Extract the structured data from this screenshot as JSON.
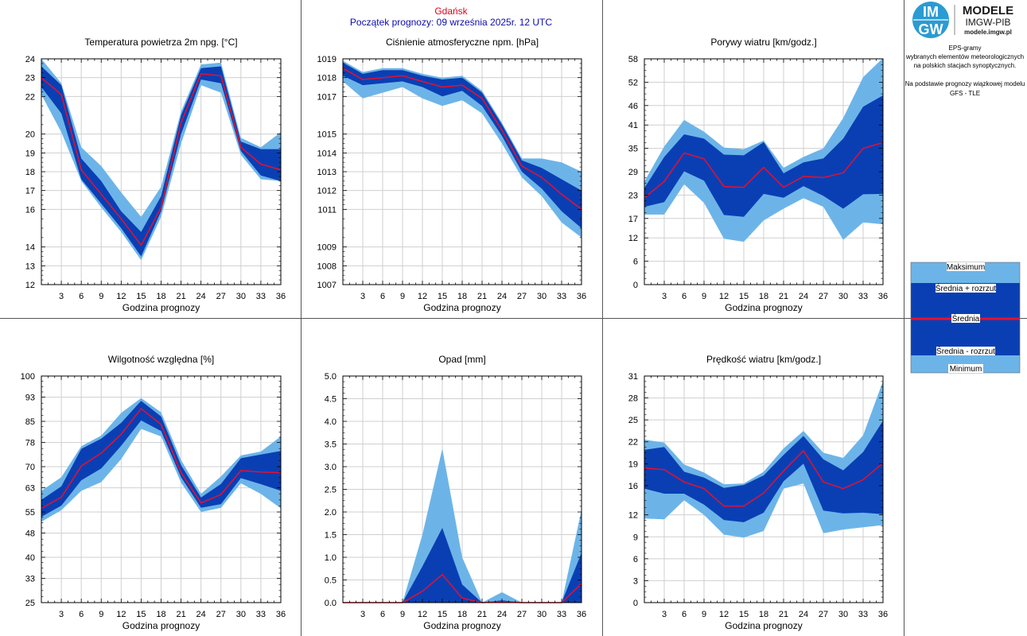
{
  "header": {
    "station": "Gdańsk",
    "forecast_start": "Początek prognozy: 09 września 2025r. 12 UTC"
  },
  "logo": {
    "badge_line1": "IM",
    "badge_line2": "GW",
    "title": "MODELE",
    "subtitle": "IMGW-PIB",
    "url": "modele.imgw.pl"
  },
  "sidebar": {
    "desc_lines": [
      "EPS-gramy",
      "wybranych elementów meteorologicznych",
      "na polskich stacjach  synoptycznych.",
      "",
      "Na podstawie prognozy wiązkowej modelu",
      "GFS - TLE"
    ]
  },
  "legend": {
    "max_label": "Maksimum",
    "upper_label": "Średnia + rozrzut",
    "mean_label": "Średnia",
    "lower_label": "Średnia - rozrzut",
    "min_label": "Minimum",
    "colors": {
      "outer": "#6cb4e8",
      "inner": "#0a3fb4",
      "mean": "#e8102e"
    }
  },
  "chart_data": [
    {
      "id": "temp",
      "type": "area",
      "title": "Temperatura powietrza 2m npg. [°C]",
      "xlabel": "Godzina prognozy",
      "x": [
        0,
        3,
        6,
        9,
        12,
        15,
        18,
        21,
        24,
        27,
        30,
        33,
        36
      ],
      "xticks": [
        3,
        6,
        9,
        12,
        15,
        18,
        21,
        24,
        27,
        30,
        33,
        36
      ],
      "ylim": [
        12,
        24
      ],
      "yticks": [
        12,
        13,
        14,
        16,
        17,
        18,
        19,
        20,
        22,
        23,
        24
      ],
      "ytick_labels": [
        "12",
        "13",
        "14",
        "16",
        "17",
        "18",
        "19",
        "20",
        "22",
        "23",
        "24"
      ],
      "series": [
        {
          "role": "maximum",
          "values": [
            24.0,
            22.7,
            19.3,
            18.3,
            16.9,
            15.6,
            17.2,
            21.2,
            23.7,
            23.8,
            19.8,
            19.3,
            20.1
          ]
        },
        {
          "role": "upper",
          "values": [
            23.6,
            22.6,
            18.7,
            17.5,
            15.9,
            14.8,
            16.7,
            21.0,
            23.5,
            23.6,
            19.6,
            19.2,
            19.2
          ]
        },
        {
          "role": "mean",
          "values": [
            23.0,
            22.1,
            18.1,
            16.8,
            15.5,
            14.1,
            16.1,
            20.6,
            23.2,
            23.1,
            19.3,
            18.4,
            18.1
          ]
        },
        {
          "role": "lower",
          "values": [
            22.5,
            21.1,
            17.6,
            16.3,
            15.0,
            13.5,
            15.9,
            20.0,
            22.9,
            22.7,
            19.1,
            17.8,
            17.5
          ]
        },
        {
          "role": "minimum",
          "values": [
            22.1,
            20.1,
            17.5,
            16.1,
            14.8,
            13.3,
            15.6,
            19.5,
            22.6,
            22.2,
            18.9,
            17.6,
            17.5
          ]
        }
      ]
    },
    {
      "id": "pressure",
      "type": "area",
      "title": "Ciśnienie atmosferyczne npm. [hPa]",
      "xlabel": "Godzina prognozy",
      "x": [
        0,
        3,
        6,
        9,
        12,
        15,
        18,
        21,
        24,
        27,
        30,
        33,
        36
      ],
      "xticks": [
        3,
        6,
        9,
        12,
        15,
        18,
        21,
        24,
        27,
        30,
        33,
        36
      ],
      "ylim": [
        1007,
        1019
      ],
      "yticks": [
        1007,
        1008,
        1009,
        1011,
        1012,
        1013,
        1014,
        1015,
        1017,
        1018,
        1019
      ],
      "ytick_labels": [
        "1007",
        "1008",
        "1009",
        "1011",
        "1012",
        "1013",
        "1014",
        "1015",
        "1017",
        "1018",
        "1019"
      ],
      "series": [
        {
          "role": "maximum",
          "values": [
            1018.9,
            1018.3,
            1018.5,
            1018.5,
            1018.2,
            1018.0,
            1018.1,
            1017.3,
            1015.6,
            1013.7,
            1013.7,
            1013.5,
            1013.0
          ]
        },
        {
          "role": "upper",
          "values": [
            1018.8,
            1018.2,
            1018.4,
            1018.4,
            1018.1,
            1017.9,
            1018.0,
            1017.2,
            1015.5,
            1013.6,
            1013.2,
            1012.6,
            1012.0
          ]
        },
        {
          "role": "mean",
          "values": [
            1018.5,
            1017.9,
            1018.0,
            1018.1,
            1017.8,
            1017.5,
            1017.6,
            1016.9,
            1015.2,
            1013.3,
            1012.7,
            1011.8,
            1011.0
          ]
        },
        {
          "role": "lower",
          "values": [
            1018.1,
            1017.6,
            1017.7,
            1017.8,
            1017.5,
            1017.0,
            1017.3,
            1016.5,
            1014.9,
            1013.0,
            1012.1,
            1010.9,
            1010.0
          ]
        },
        {
          "role": "minimum",
          "values": [
            1017.8,
            1016.9,
            1017.2,
            1017.5,
            1016.9,
            1016.5,
            1016.8,
            1016.1,
            1014.5,
            1012.7,
            1011.7,
            1010.3,
            1009.5
          ]
        }
      ]
    },
    {
      "id": "gusts",
      "type": "area",
      "title": "Porywy wiatru [km/godz.]",
      "xlabel": "Godzina prognozy",
      "x": [
        0,
        3,
        6,
        9,
        12,
        15,
        18,
        21,
        24,
        27,
        30,
        33,
        36
      ],
      "xticks": [
        3,
        6,
        9,
        12,
        15,
        18,
        21,
        24,
        27,
        30,
        33,
        36
      ],
      "ylim": [
        0,
        58
      ],
      "yticks": [
        0,
        6,
        12,
        17,
        23,
        29,
        35,
        41,
        46,
        52,
        58
      ],
      "ytick_labels": [
        "0",
        "6",
        "12",
        "17",
        "23",
        "29",
        "35",
        "41",
        "46",
        "52",
        "58"
      ],
      "series": [
        {
          "role": "maximum",
          "values": [
            26.5,
            35.5,
            42.3,
            39.3,
            35.2,
            34.8,
            37.0,
            30.0,
            32.8,
            35.0,
            42.8,
            53.3,
            58.2
          ]
        },
        {
          "role": "upper",
          "values": [
            24.8,
            32.8,
            38.6,
            37.5,
            33.4,
            33.2,
            36.6,
            28.6,
            31.4,
            32.4,
            37.5,
            45.7,
            48.6
          ]
        },
        {
          "role": "mean",
          "values": [
            22.3,
            26.5,
            33.8,
            32.3,
            25.2,
            25.0,
            30.1,
            25.0,
            27.8,
            27.5,
            28.7,
            35.0,
            36.5
          ]
        },
        {
          "role": "lower",
          "values": [
            20.0,
            21.2,
            29.1,
            26.7,
            17.9,
            17.4,
            23.3,
            22.3,
            25.3,
            22.8,
            19.5,
            23.2,
            23.3
          ]
        },
        {
          "role": "minimum",
          "values": [
            18.0,
            18.0,
            25.8,
            21.0,
            11.8,
            11.0,
            16.5,
            19.5,
            22.2,
            20.0,
            11.5,
            16.0,
            15.5
          ]
        }
      ]
    },
    {
      "id": "humidity",
      "type": "area",
      "title": "Wilgotność względna [%]",
      "xlabel": "Godzina prognozy",
      "x": [
        0,
        3,
        6,
        9,
        12,
        15,
        18,
        21,
        24,
        27,
        30,
        33,
        36
      ],
      "xticks": [
        3,
        6,
        9,
        12,
        15,
        18,
        21,
        24,
        27,
        30,
        33,
        36
      ],
      "ylim": [
        25,
        100
      ],
      "yticks": [
        25,
        33,
        40,
        48,
        55,
        63,
        70,
        78,
        85,
        93,
        100
      ],
      "ytick_labels": [
        "25",
        "33",
        "40",
        "48",
        "55",
        "63",
        "70",
        "78",
        "85",
        "93",
        "100"
      ],
      "series": [
        {
          "role": "maximum",
          "values": [
            62.0,
            66.5,
            76.8,
            80.3,
            87.8,
            92.7,
            88.0,
            72.2,
            61.0,
            66.8,
            73.7,
            75.0,
            80.0
          ]
        },
        {
          "role": "upper",
          "values": [
            59.0,
            63.5,
            75.9,
            79.3,
            84.5,
            91.8,
            86.6,
            70.5,
            59.8,
            64.3,
            72.8,
            74.0,
            75.2
          ]
        },
        {
          "role": "mean",
          "values": [
            56.2,
            59.9,
            70.2,
            74.5,
            80.7,
            89.2,
            84.0,
            68.0,
            58.0,
            60.8,
            68.7,
            68.2,
            68.0
          ]
        },
        {
          "role": "lower",
          "values": [
            53.4,
            57.1,
            65.5,
            69.4,
            76.9,
            85.3,
            81.8,
            66.5,
            56.4,
            57.6,
            66.2,
            64.2,
            62.0
          ]
        },
        {
          "role": "minimum",
          "values": [
            51.8,
            55.6,
            62.0,
            64.9,
            72.5,
            82.5,
            80.0,
            64.7,
            55.0,
            56.4,
            64.5,
            61.0,
            56.2
          ]
        }
      ]
    },
    {
      "id": "precip",
      "type": "area",
      "title": "Opad [mm]",
      "xlabel": "Godzina prognozy",
      "x": [
        0,
        3,
        6,
        9,
        12,
        15,
        18,
        21,
        24,
        27,
        30,
        33,
        36
      ],
      "xticks": [
        3,
        6,
        9,
        12,
        15,
        18,
        21,
        24,
        27,
        30,
        33,
        36
      ],
      "ylim": [
        0,
        5
      ],
      "yticks": [
        0,
        0.5,
        1.0,
        1.5,
        2.0,
        2.5,
        3.0,
        3.5,
        4.0,
        4.5,
        5.0
      ],
      "ytick_labels": [
        "0.0",
        "0.5",
        "1.0",
        "1.5",
        "2.0",
        "2.5",
        "3.0",
        "3.5",
        "4.0",
        "4.5",
        "5.0"
      ],
      "series": [
        {
          "role": "maximum",
          "values": [
            0,
            0,
            0,
            0,
            1.5,
            3.4,
            1.0,
            0,
            0.23,
            0,
            0,
            0,
            2.05
          ]
        },
        {
          "role": "upper",
          "values": [
            0,
            0,
            0,
            0,
            0.8,
            1.65,
            0.4,
            0,
            0.05,
            0,
            0,
            0,
            1.1
          ]
        },
        {
          "role": "mean",
          "values": [
            0,
            0,
            0,
            0,
            0.25,
            0.62,
            0.1,
            0,
            0.02,
            0,
            0,
            0,
            0.42
          ]
        },
        {
          "role": "lower",
          "values": [
            0,
            0,
            0,
            0,
            0,
            0,
            0,
            0,
            0,
            0,
            0,
            0,
            0
          ]
        },
        {
          "role": "minimum",
          "values": [
            0,
            0,
            0,
            0,
            0,
            0,
            0,
            0,
            0,
            0,
            0,
            0,
            0
          ]
        }
      ]
    },
    {
      "id": "wind",
      "type": "area",
      "title": "Prędkość wiatru [km/godz.]",
      "xlabel": "Godzina prognozy",
      "x": [
        0,
        3,
        6,
        9,
        12,
        15,
        18,
        21,
        24,
        27,
        30,
        33,
        36
      ],
      "xticks": [
        3,
        6,
        9,
        12,
        15,
        18,
        21,
        24,
        27,
        30,
        33,
        36
      ],
      "ylim": [
        0,
        31
      ],
      "yticks": [
        0,
        3,
        6,
        9,
        12,
        16,
        19,
        22,
        25,
        28,
        31
      ],
      "ytick_labels": [
        "0",
        "3",
        "6",
        "9",
        "12",
        "16",
        "19",
        "22",
        "25",
        "28",
        "31"
      ],
      "series": [
        {
          "role": "maximum",
          "values": [
            22.3,
            21.9,
            18.9,
            17.8,
            16.2,
            16.3,
            17.9,
            21.1,
            23.5,
            20.5,
            19.8,
            22.9,
            30.3
          ]
        },
        {
          "role": "upper",
          "values": [
            20.9,
            21.3,
            17.9,
            17.1,
            15.7,
            16.1,
            17.4,
            20.2,
            22.8,
            19.6,
            18.1,
            20.6,
            24.9
          ]
        },
        {
          "role": "mean",
          "values": [
            18.4,
            18.2,
            16.5,
            15.6,
            13.2,
            13.2,
            15.0,
            18.0,
            20.8,
            16.5,
            15.6,
            16.8,
            19.1
          ]
        },
        {
          "role": "lower",
          "values": [
            15.6,
            14.9,
            14.9,
            13.4,
            11.3,
            11.0,
            12.3,
            16.6,
            19.0,
            12.6,
            12.2,
            12.3,
            12.1
          ]
        },
        {
          "role": "minimum",
          "values": [
            11.5,
            11.4,
            14.0,
            12.0,
            9.3,
            8.9,
            9.8,
            15.6,
            16.3,
            9.5,
            10.0,
            10.3,
            10.6
          ]
        }
      ]
    }
  ]
}
